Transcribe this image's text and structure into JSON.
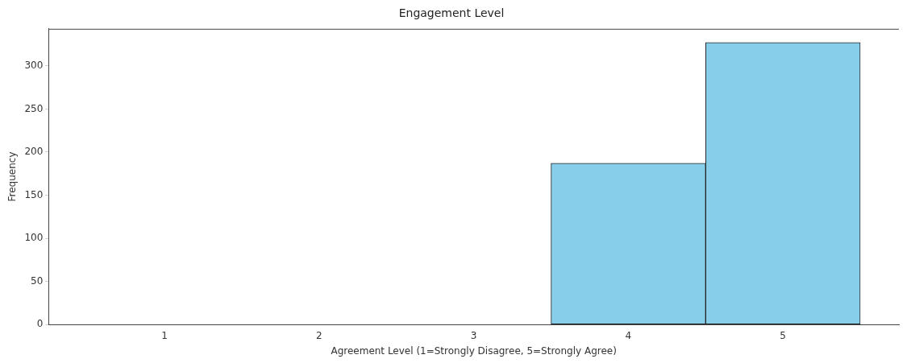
{
  "chart_data": {
    "type": "histogram",
    "title": "Engagement Level",
    "xlabel": "Agreement Level (1=Strongly Disagree, 5=Strongly Agree)",
    "ylabel": "Frequency",
    "bins": [
      0.5,
      1.5,
      2.5,
      3.5,
      4.5,
      5.5
    ],
    "values": [
      0,
      0,
      0,
      187,
      327
    ],
    "color": "#87ceeb",
    "xlim": [
      0.25,
      5.75
    ],
    "xticks": [
      1,
      2,
      3,
      4,
      5
    ],
    "ylim": [
      0,
      343
    ],
    "yticks": [
      0,
      50,
      100,
      150,
      200,
      250,
      300
    ],
    "grid": false,
    "legend": false
  }
}
